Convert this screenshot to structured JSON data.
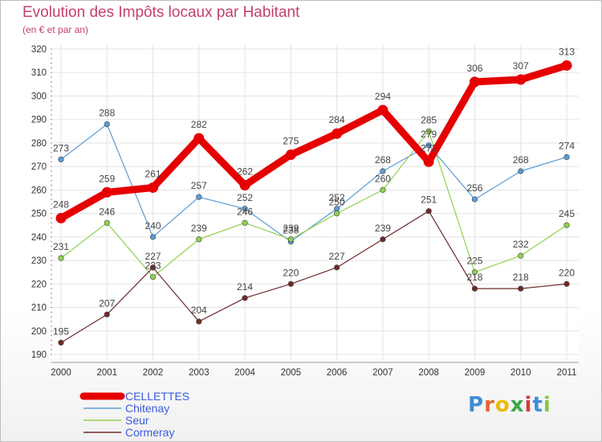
{
  "header": {
    "title": "Evolution des Impôts locaux par Habitant",
    "subtitle": "(en € et par an)"
  },
  "logo": {
    "text": "Proxiti"
  },
  "chart_data": {
    "type": "line",
    "title": "Evolution des Impôts locaux par Habitant",
    "subtitle": "(en € et par an)",
    "xlabel": "",
    "ylabel": "",
    "categories": [
      "2000",
      "2001",
      "2002",
      "2003",
      "2004",
      "2005",
      "2006",
      "2007",
      "2008",
      "2009",
      "2010",
      "2011"
    ],
    "ylim": [
      190,
      320
    ],
    "yticks": [
      190,
      200,
      210,
      220,
      230,
      240,
      250,
      260,
      270,
      280,
      290,
      300,
      310,
      320
    ],
    "grid": true,
    "legend_position": "bottom-left",
    "series": [
      {
        "name": "CELLETTES",
        "color": "#e60000",
        "emphasis": true,
        "values": [
          248,
          259,
          261,
          282,
          262,
          275,
          284,
          294,
          272,
          306,
          307,
          313
        ]
      },
      {
        "name": "Chitenay",
        "color": "#5b9bd5",
        "emphasis": false,
        "values": [
          273,
          288,
          240,
          257,
          252,
          238,
          252,
          268,
          279,
          256,
          268,
          274
        ]
      },
      {
        "name": "Seur",
        "color": "#8fd14f",
        "emphasis": false,
        "values": [
          231,
          246,
          223,
          239,
          246,
          239,
          250,
          260,
          285,
          225,
          232,
          245
        ]
      },
      {
        "name": "Cormeray",
        "color": "#6e2a2a",
        "emphasis": false,
        "values": [
          195,
          207,
          227,
          204,
          214,
          220,
          227,
          239,
          251,
          218,
          218,
          220
        ]
      }
    ]
  }
}
